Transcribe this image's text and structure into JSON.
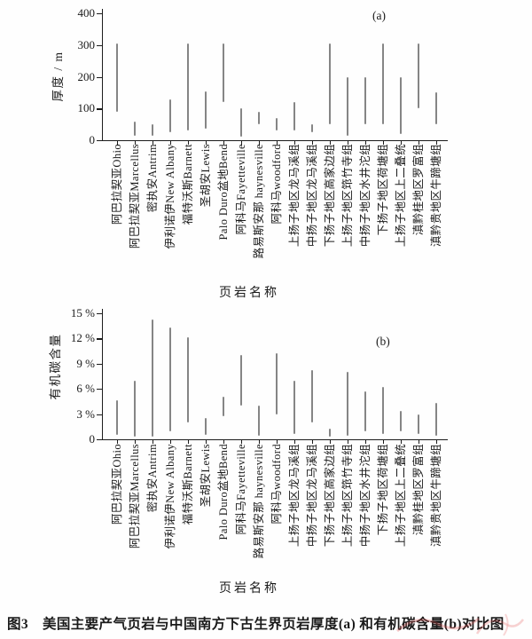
{
  "figure": {
    "caption": "图3　美国主要产气页岩与中国南方下古生界页岩厚度(a) 和有机碳含量(b)对比图"
  },
  "chart_data": [
    {
      "id": "a",
      "type": "bar",
      "subtype": "floating-range-bars",
      "panel_label": "(a)",
      "xlabel": "页岩名称",
      "ylabel": "厚度 / m",
      "ylim": [
        0,
        400
      ],
      "yticks": [
        0,
        100,
        200,
        300,
        400
      ],
      "ytick_labels": [
        "0",
        "100",
        "200",
        "300",
        "400"
      ],
      "grid": false,
      "categories": [
        "阿巴拉契亚Ohio",
        "阿巴拉契亚Marcellus",
        "密执安Antrim",
        "伊利诺伊New Albany",
        "福特沃斯Barnett",
        "圣胡安Lewis",
        "Palo Duro盆地Bend",
        "阿科马Fayetteville",
        "路易斯安那 haynesville",
        "阿科马woodford",
        "上扬子地区龙马溪组",
        "中扬子地区龙马溪组",
        "下扬子地区高家边组",
        "上扬子地区筇竹寺组",
        "中扬子地区水井沱组",
        "下扬子地区荷塘组",
        "上扬子地区上二叠统",
        "滇黔桂地区罗富组",
        "滇黔贵地区牛蹄塘组"
      ],
      "ranges": [
        [
          90,
          305
        ],
        [
          15,
          60
        ],
        [
          15,
          50
        ],
        [
          25,
          130
        ],
        [
          30,
          305
        ],
        [
          35,
          155
        ],
        [
          120,
          305
        ],
        [
          10,
          100
        ],
        [
          50,
          90
        ],
        [
          30,
          70
        ],
        [
          30,
          120
        ],
        [
          25,
          50
        ],
        [
          50,
          305
        ],
        [
          15,
          200
        ],
        [
          50,
          200
        ],
        [
          50,
          305
        ],
        [
          20,
          200
        ],
        [
          100,
          305
        ],
        [
          50,
          150
        ]
      ]
    },
    {
      "id": "b",
      "type": "bar",
      "subtype": "floating-range-bars",
      "panel_label": "(b)",
      "xlabel": "页岩名称",
      "ylabel": "有机碳含量",
      "ylim": [
        0,
        15
      ],
      "yticks": [
        0,
        3,
        6,
        9,
        12,
        15
      ],
      "ytick_labels": [
        "0",
        "3 %",
        "6 %",
        "9 %",
        "12 %",
        "15 %"
      ],
      "grid": false,
      "categories": [
        "阿巴拉契亚Ohio",
        "阿巴拉契亚Marcellus",
        "密执安Antrim",
        "伊利诺伊New Albany",
        "福特沃斯Barnett",
        "圣胡安Lewis",
        "Palo Duro盆地Bend",
        "阿科马Fayetteville",
        "路易斯安那 haynesville",
        "阿科马woodford",
        "上扬子地区龙马溪组",
        "中扬子地区龙马溪组",
        "下扬子地区高家边组",
        "上扬子地区筇竹寺组",
        "中扬子地区水井沱组",
        "下扬子地区荷塘组",
        "上扬子地区上二叠统",
        "滇黔桂地区罗富组",
        "滇黔贵地区牛蹄塘组"
      ],
      "ranges": [
        [
          0.5,
          4.7
        ],
        [
          0.3,
          7.0
        ],
        [
          0.3,
          14.3
        ],
        [
          1.0,
          13.3
        ],
        [
          2.0,
          12.2
        ],
        [
          0.5,
          2.5
        ],
        [
          2.7,
          5.1
        ],
        [
          4.0,
          10.0
        ],
        [
          0.4,
          4.0
        ],
        [
          3.0,
          10.2
        ],
        [
          0.6,
          7.0
        ],
        [
          2.0,
          8.2
        ],
        [
          0.3,
          1.3
        ],
        [
          0.4,
          8.0
        ],
        [
          1.0,
          5.7
        ],
        [
          0.6,
          6.2
        ],
        [
          1.0,
          3.4
        ],
        [
          0.6,
          3.0
        ],
        [
          0.4,
          4.3
        ]
      ]
    }
  ]
}
